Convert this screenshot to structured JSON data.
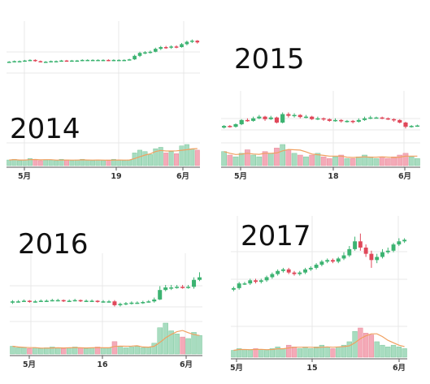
{
  "chart_data": [
    {
      "type": "candlestick",
      "year_label": "2014",
      "x_tick_labels": [
        "5月",
        "19",
        "6月"
      ],
      "grid": true,
      "colors": {
        "up": "#3cb371",
        "down": "#e0485a",
        "volume_up": "#a8dcc0",
        "volume_down": "#f4aab8",
        "ma_line": "#f0a060",
        "grid": "#e8e8e8"
      },
      "price_range": [
        0,
        100
      ],
      "candles": [
        {
          "o": 50,
          "c": 50,
          "h": 51,
          "l": 49
        },
        {
          "o": 50,
          "c": 51,
          "h": 52,
          "l": 49
        },
        {
          "o": 51,
          "c": 51,
          "h": 52,
          "l": 50
        },
        {
          "o": 51,
          "c": 52,
          "h": 53,
          "l": 50
        },
        {
          "o": 52,
          "c": 53,
          "h": 54,
          "l": 51
        },
        {
          "o": 53,
          "c": 51,
          "h": 54,
          "l": 50
        },
        {
          "o": 51,
          "c": 50,
          "h": 52,
          "l": 49
        },
        {
          "o": 50,
          "c": 50,
          "h": 51,
          "l": 49
        },
        {
          "o": 50,
          "c": 51,
          "h": 52,
          "l": 49
        },
        {
          "o": 51,
          "c": 51,
          "h": 52,
          "l": 50
        },
        {
          "o": 51,
          "c": 52,
          "h": 53,
          "l": 50
        },
        {
          "o": 52,
          "c": 51,
          "h": 53,
          "l": 50
        },
        {
          "o": 51,
          "c": 52,
          "h": 53,
          "l": 50
        },
        {
          "o": 52,
          "c": 52,
          "h": 53,
          "l": 51
        },
        {
          "o": 52,
          "c": 53,
          "h": 54,
          "l": 51
        },
        {
          "o": 53,
          "c": 53,
          "h": 54,
          "l": 52
        },
        {
          "o": 53,
          "c": 53,
          "h": 54,
          "l": 52
        },
        {
          "o": 53,
          "c": 53,
          "h": 54,
          "l": 52
        },
        {
          "o": 53,
          "c": 53,
          "h": 54,
          "l": 52
        },
        {
          "o": 53,
          "c": 52,
          "h": 54,
          "l": 51
        },
        {
          "o": 52,
          "c": 53,
          "h": 54,
          "l": 51
        },
        {
          "o": 53,
          "c": 53,
          "h": 54,
          "l": 52
        },
        {
          "o": 53,
          "c": 53,
          "h": 54,
          "l": 52
        },
        {
          "o": 53,
          "c": 54,
          "h": 55,
          "l": 52
        },
        {
          "o": 54,
          "c": 60,
          "h": 62,
          "l": 53
        },
        {
          "o": 60,
          "c": 65,
          "h": 67,
          "l": 58
        },
        {
          "o": 65,
          "c": 66,
          "h": 68,
          "l": 63
        },
        {
          "o": 66,
          "c": 67,
          "h": 69,
          "l": 64
        },
        {
          "o": 67,
          "c": 72,
          "h": 74,
          "l": 66
        },
        {
          "o": 72,
          "c": 75,
          "h": 77,
          "l": 70
        },
        {
          "o": 75,
          "c": 74,
          "h": 77,
          "l": 72
        },
        {
          "o": 74,
          "c": 76,
          "h": 78,
          "l": 72
        },
        {
          "o": 76,
          "c": 75,
          "h": 78,
          "l": 73
        },
        {
          "o": 75,
          "c": 80,
          "h": 82,
          "l": 74
        },
        {
          "o": 80,
          "c": 84,
          "h": 86,
          "l": 78
        },
        {
          "o": 84,
          "c": 86,
          "h": 88,
          "l": 82
        },
        {
          "o": 86,
          "c": 83,
          "h": 87,
          "l": 81
        }
      ],
      "volumes": [
        8,
        9,
        7,
        8,
        10,
        9,
        7,
        8,
        8,
        7,
        9,
        8,
        7,
        8,
        9,
        8,
        7,
        8,
        7,
        8,
        9,
        8,
        7,
        8,
        18,
        22,
        20,
        16,
        24,
        26,
        18,
        20,
        17,
        28,
        30,
        24,
        22
      ]
    },
    {
      "type": "candlestick",
      "year_label": "2015",
      "x_tick_labels": [
        "5月",
        "18",
        "6月"
      ],
      "grid": true,
      "colors": {
        "up": "#3cb371",
        "down": "#e0485a",
        "volume_up": "#a8dcc0",
        "volume_down": "#f4aab8",
        "ma_line": "#f0a060",
        "grid": "#e8e8e8"
      },
      "price_range": [
        0,
        100
      ],
      "candles": [
        {
          "o": 40,
          "c": 44,
          "h": 46,
          "l": 38
        },
        {
          "o": 44,
          "c": 42,
          "h": 46,
          "l": 40
        },
        {
          "o": 42,
          "c": 48,
          "h": 50,
          "l": 40
        },
        {
          "o": 48,
          "c": 58,
          "h": 60,
          "l": 46
        },
        {
          "o": 58,
          "c": 56,
          "h": 62,
          "l": 54
        },
        {
          "o": 56,
          "c": 62,
          "h": 66,
          "l": 54
        },
        {
          "o": 62,
          "c": 66,
          "h": 70,
          "l": 60
        },
        {
          "o": 66,
          "c": 60,
          "h": 68,
          "l": 56
        },
        {
          "o": 60,
          "c": 64,
          "h": 68,
          "l": 58
        },
        {
          "o": 64,
          "c": 52,
          "h": 66,
          "l": 50
        },
        {
          "o": 52,
          "c": 72,
          "h": 76,
          "l": 50
        },
        {
          "o": 72,
          "c": 68,
          "h": 76,
          "l": 64
        },
        {
          "o": 68,
          "c": 70,
          "h": 74,
          "l": 64
        },
        {
          "o": 70,
          "c": 65,
          "h": 72,
          "l": 62
        },
        {
          "o": 65,
          "c": 66,
          "h": 70,
          "l": 62
        },
        {
          "o": 66,
          "c": 60,
          "h": 68,
          "l": 58
        },
        {
          "o": 60,
          "c": 62,
          "h": 66,
          "l": 58
        },
        {
          "o": 62,
          "c": 60,
          "h": 64,
          "l": 56
        },
        {
          "o": 60,
          "c": 56,
          "h": 62,
          "l": 54
        },
        {
          "o": 56,
          "c": 58,
          "h": 62,
          "l": 54
        },
        {
          "o": 58,
          "c": 55,
          "h": 60,
          "l": 52
        },
        {
          "o": 55,
          "c": 56,
          "h": 58,
          "l": 52
        },
        {
          "o": 56,
          "c": 54,
          "h": 58,
          "l": 50
        },
        {
          "o": 54,
          "c": 58,
          "h": 62,
          "l": 52
        },
        {
          "o": 58,
          "c": 62,
          "h": 66,
          "l": 56
        },
        {
          "o": 62,
          "c": 64,
          "h": 68,
          "l": 60
        },
        {
          "o": 64,
          "c": 64,
          "h": 66,
          "l": 62
        },
        {
          "o": 64,
          "c": 62,
          "h": 66,
          "l": 60
        },
        {
          "o": 62,
          "c": 60,
          "h": 64,
          "l": 58
        },
        {
          "o": 60,
          "c": 58,
          "h": 62,
          "l": 54
        },
        {
          "o": 58,
          "c": 52,
          "h": 60,
          "l": 50
        },
        {
          "o": 52,
          "c": 42,
          "h": 54,
          "l": 38
        },
        {
          "o": 42,
          "c": 44,
          "h": 46,
          "l": 40
        },
        {
          "o": 44,
          "c": 45,
          "h": 47,
          "l": 42
        }
      ],
      "volumes": [
        16,
        12,
        10,
        14,
        18,
        12,
        10,
        16,
        14,
        20,
        24,
        18,
        14,
        12,
        10,
        12,
        14,
        10,
        8,
        10,
        12,
        8,
        8,
        10,
        12,
        10,
        8,
        10,
        8,
        10,
        12,
        14,
        10,
        8
      ]
    },
    {
      "type": "candlestick",
      "year_label": "2016",
      "x_tick_labels": [
        "5月",
        "16",
        "6月"
      ],
      "grid": true,
      "colors": {
        "up": "#3cb371",
        "down": "#e0485a",
        "volume_up": "#a8dcc0",
        "volume_down": "#f4aab8",
        "ma_line": "#f0a060",
        "grid": "#e8e8e8"
      },
      "price_range": [
        0,
        100
      ],
      "candles": [
        {
          "o": 40,
          "c": 42,
          "h": 44,
          "l": 38
        },
        {
          "o": 42,
          "c": 42,
          "h": 44,
          "l": 40
        },
        {
          "o": 42,
          "c": 43,
          "h": 45,
          "l": 41
        },
        {
          "o": 43,
          "c": 42,
          "h": 44,
          "l": 40
        },
        {
          "o": 42,
          "c": 42,
          "h": 44,
          "l": 40
        },
        {
          "o": 42,
          "c": 43,
          "h": 45,
          "l": 41
        },
        {
          "o": 43,
          "c": 43,
          "h": 45,
          "l": 41
        },
        {
          "o": 43,
          "c": 44,
          "h": 46,
          "l": 42
        },
        {
          "o": 44,
          "c": 44,
          "h": 46,
          "l": 42
        },
        {
          "o": 44,
          "c": 43,
          "h": 45,
          "l": 41
        },
        {
          "o": 43,
          "c": 43,
          "h": 45,
          "l": 41
        },
        {
          "o": 43,
          "c": 44,
          "h": 46,
          "l": 42
        },
        {
          "o": 44,
          "c": 43,
          "h": 45,
          "l": 41
        },
        {
          "o": 43,
          "c": 43,
          "h": 45,
          "l": 41
        },
        {
          "o": 43,
          "c": 43,
          "h": 45,
          "l": 41
        },
        {
          "o": 43,
          "c": 42,
          "h": 44,
          "l": 40
        },
        {
          "o": 42,
          "c": 42,
          "h": 44,
          "l": 40
        },
        {
          "o": 42,
          "c": 42,
          "h": 44,
          "l": 40
        },
        {
          "o": 42,
          "c": 36,
          "h": 44,
          "l": 34
        },
        {
          "o": 36,
          "c": 38,
          "h": 40,
          "l": 34
        },
        {
          "o": 38,
          "c": 39,
          "h": 41,
          "l": 36
        },
        {
          "o": 39,
          "c": 40,
          "h": 42,
          "l": 37
        },
        {
          "o": 40,
          "c": 40,
          "h": 42,
          "l": 38
        },
        {
          "o": 40,
          "c": 41,
          "h": 43,
          "l": 38
        },
        {
          "o": 41,
          "c": 42,
          "h": 44,
          "l": 40
        },
        {
          "o": 42,
          "c": 45,
          "h": 48,
          "l": 40
        },
        {
          "o": 45,
          "c": 60,
          "h": 66,
          "l": 44
        },
        {
          "o": 60,
          "c": 64,
          "h": 68,
          "l": 58
        },
        {
          "o": 64,
          "c": 64,
          "h": 68,
          "l": 60
        },
        {
          "o": 64,
          "c": 65,
          "h": 68,
          "l": 62
        },
        {
          "o": 65,
          "c": 64,
          "h": 68,
          "l": 62
        },
        {
          "o": 64,
          "c": 65,
          "h": 68,
          "l": 62
        },
        {
          "o": 65,
          "c": 76,
          "h": 80,
          "l": 62
        },
        {
          "o": 76,
          "c": 80,
          "h": 88,
          "l": 74
        }
      ],
      "volumes": [
        10,
        8,
        8,
        7,
        8,
        7,
        8,
        9,
        8,
        7,
        8,
        9,
        8,
        7,
        8,
        9,
        8,
        8,
        16,
        10,
        8,
        9,
        10,
        8,
        9,
        14,
        34,
        40,
        30,
        26,
        22,
        20,
        28,
        24
      ]
    },
    {
      "type": "candlestick",
      "year_label": "2017",
      "x_tick_labels": [
        "5月",
        "15",
        "6月"
      ],
      "grid": true,
      "colors": {
        "up": "#3cb371",
        "down": "#e0485a",
        "volume_up": "#a8dcc0",
        "volume_down": "#f4aab8",
        "ma_line": "#f0a060",
        "grid": "#e8e8e8"
      },
      "price_range": [
        0,
        100
      ],
      "candles": [
        {
          "o": 20,
          "c": 22,
          "h": 24,
          "l": 18
        },
        {
          "o": 22,
          "c": 28,
          "h": 30,
          "l": 20
        },
        {
          "o": 28,
          "c": 28,
          "h": 30,
          "l": 26
        },
        {
          "o": 28,
          "c": 32,
          "h": 34,
          "l": 26
        },
        {
          "o": 32,
          "c": 30,
          "h": 34,
          "l": 28
        },
        {
          "o": 30,
          "c": 32,
          "h": 34,
          "l": 28
        },
        {
          "o": 32,
          "c": 36,
          "h": 38,
          "l": 30
        },
        {
          "o": 36,
          "c": 40,
          "h": 42,
          "l": 34
        },
        {
          "o": 40,
          "c": 44,
          "h": 46,
          "l": 38
        },
        {
          "o": 44,
          "c": 46,
          "h": 48,
          "l": 42
        },
        {
          "o": 46,
          "c": 42,
          "h": 48,
          "l": 40
        },
        {
          "o": 42,
          "c": 40,
          "h": 44,
          "l": 38
        },
        {
          "o": 40,
          "c": 42,
          "h": 44,
          "l": 38
        },
        {
          "o": 42,
          "c": 46,
          "h": 48,
          "l": 40
        },
        {
          "o": 46,
          "c": 48,
          "h": 50,
          "l": 44
        },
        {
          "o": 48,
          "c": 52,
          "h": 54,
          "l": 46
        },
        {
          "o": 52,
          "c": 56,
          "h": 58,
          "l": 50
        },
        {
          "o": 56,
          "c": 58,
          "h": 60,
          "l": 54
        },
        {
          "o": 58,
          "c": 56,
          "h": 60,
          "l": 54
        },
        {
          "o": 56,
          "c": 60,
          "h": 62,
          "l": 54
        },
        {
          "o": 60,
          "c": 64,
          "h": 68,
          "l": 58
        },
        {
          "o": 64,
          "c": 72,
          "h": 76,
          "l": 62
        },
        {
          "o": 72,
          "c": 82,
          "h": 88,
          "l": 70
        },
        {
          "o": 82,
          "c": 74,
          "h": 92,
          "l": 70
        },
        {
          "o": 74,
          "c": 66,
          "h": 78,
          "l": 62
        },
        {
          "o": 66,
          "c": 58,
          "h": 70,
          "l": 48
        },
        {
          "o": 58,
          "c": 62,
          "h": 66,
          "l": 54
        },
        {
          "o": 62,
          "c": 68,
          "h": 72,
          "l": 60
        },
        {
          "o": 68,
          "c": 70,
          "h": 74,
          "l": 66
        },
        {
          "o": 70,
          "c": 78,
          "h": 80,
          "l": 68
        },
        {
          "o": 78,
          "c": 82,
          "h": 86,
          "l": 76
        },
        {
          "o": 82,
          "c": 84,
          "h": 86,
          "l": 80
        }
      ],
      "volumes": [
        8,
        10,
        9,
        8,
        10,
        9,
        8,
        10,
        12,
        10,
        14,
        12,
        10,
        12,
        10,
        12,
        14,
        12,
        10,
        12,
        14,
        18,
        30,
        34,
        28,
        26,
        18,
        14,
        12,
        14,
        12,
        10
      ]
    }
  ]
}
